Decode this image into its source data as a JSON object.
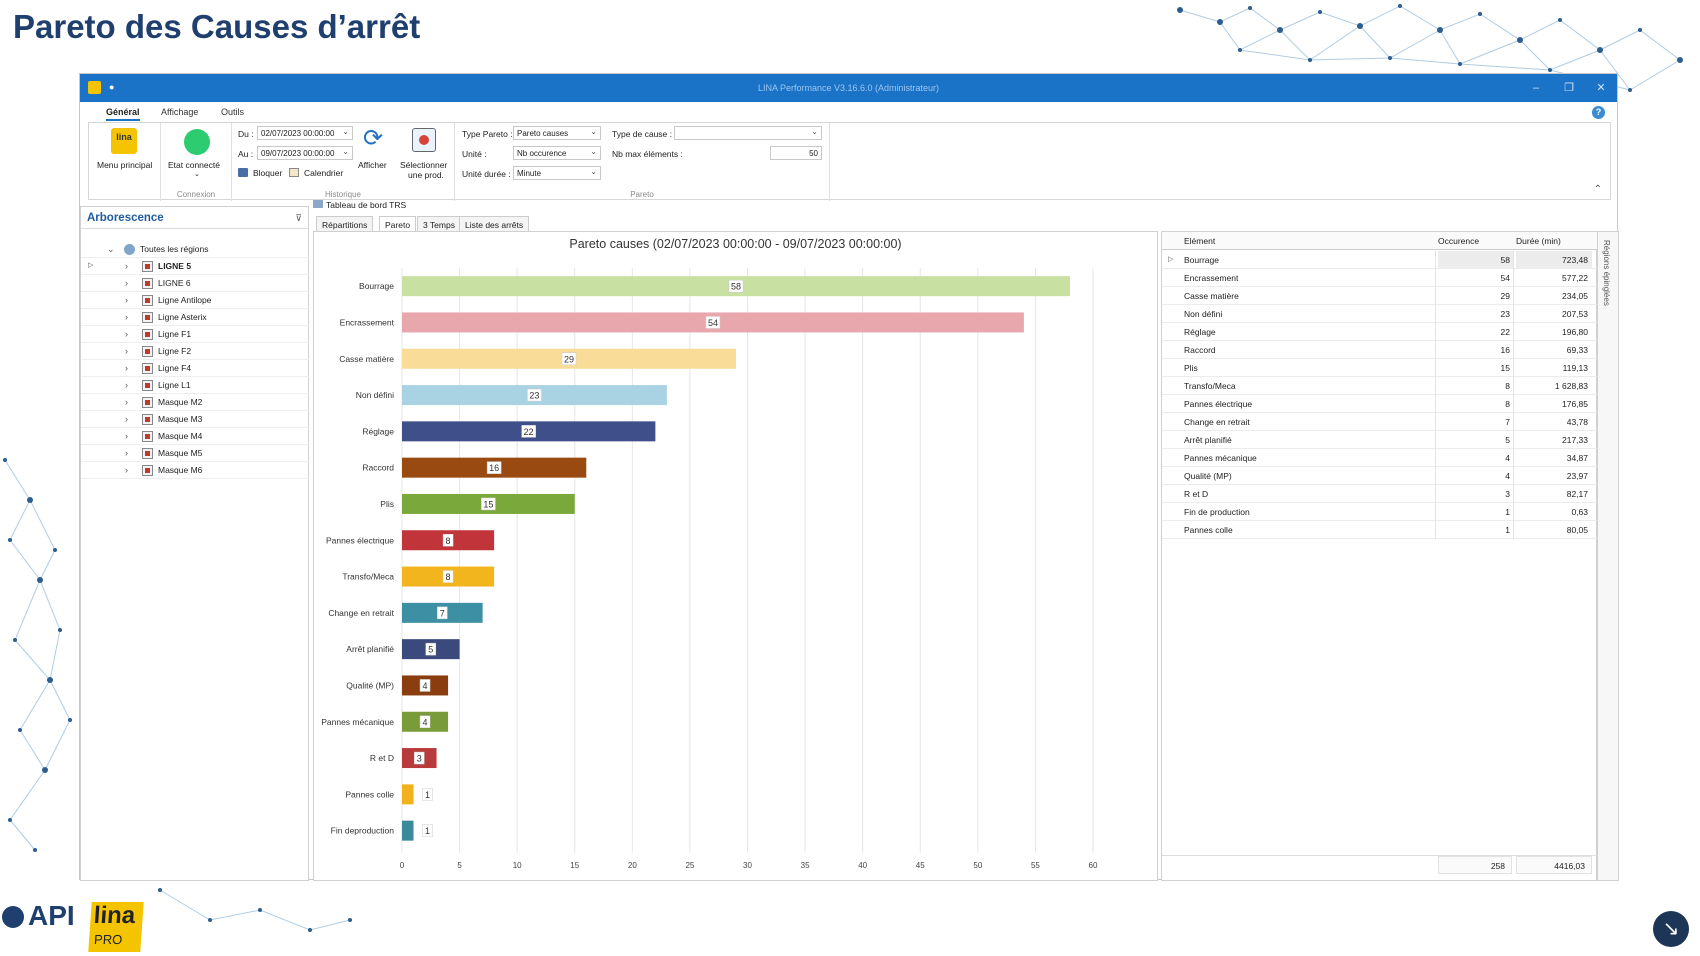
{
  "slide": {
    "title": "Pareto des Causes d’arrêt"
  },
  "window": {
    "title": "LINA Performance  V3.16.6.0  (Administrateur)"
  },
  "menu": {
    "tabs": [
      "Général",
      "Affichage",
      "Outils"
    ],
    "active": 0
  },
  "ribbon": {
    "menu_principal": "Menu principal",
    "lina_logo": "lina",
    "etat_connecte": "Etat connecté",
    "connexion_group": "Connexion",
    "du_label": "Du :",
    "du_value": "02/07/2023 00:00:00",
    "au_label": "Au :",
    "au_value": "09/07/2023 00:00:00",
    "bloquer": "Bloquer",
    "calendrier": "Calendrier",
    "afficher": "Afficher",
    "selectionner_l1": "Sélectionner",
    "selectionner_l2": "une prod.",
    "historique_group": "Historique",
    "type_pareto_label": "Type Pareto :",
    "type_pareto_value": "Pareto causes",
    "unite_label": "Unité :",
    "unite_value": "Nb occurence",
    "unite_duree_label": "Unité durée :",
    "unite_duree_value": "Minute",
    "type_cause_label": "Type de cause :",
    "type_cause_value": "",
    "nb_max_label": "Nb max éléments :",
    "nb_max_value": "50",
    "pareto_group": "Pareto"
  },
  "tree": {
    "title": "Arborescence",
    "root": "Toutes les régions",
    "items": [
      "LIGNE 5",
      "LIGNE 6",
      "Ligne Antilope",
      "Ligne Asterix",
      "Ligne F1",
      "Ligne F2",
      "Ligne F4",
      "Ligne L1",
      "Masque M2",
      "Masque M3",
      "Masque M4",
      "Masque M5",
      "Masque M6"
    ]
  },
  "doc_tab": "Tableau de bord TRS",
  "subtabs": [
    "Répartitions",
    "Pareto",
    "3 Temps",
    "Liste des arrêts"
  ],
  "chart_data": {
    "type": "bar",
    "orientation": "horizontal",
    "title": "Pareto causes (02/07/2023 00:00:00 - 09/07/2023 00:00:00)",
    "categories": [
      "Bourrage",
      "Encrassement",
      "Casse matière",
      "Non défini",
      "Réglage",
      "Raccord",
      "Plis",
      "Pannes électrique",
      "Transfo/Meca",
      "Change en retrait",
      "Arrêt planifié",
      "Qualité (MP)",
      "Pannes mécanique",
      "R et D",
      "Pannes colle",
      "Fin deproduction"
    ],
    "values": [
      58,
      54,
      29,
      23,
      22,
      16,
      15,
      8,
      8,
      7,
      5,
      4,
      4,
      3,
      1,
      1
    ],
    "colors": [
      "#c9e0a3",
      "#e8a7ad",
      "#f9dc98",
      "#a9d3e3",
      "#3f4f8a",
      "#984a10",
      "#7aa83a",
      "#c0343a",
      "#f2b51e",
      "#3d8fa3",
      "#3a4a7c",
      "#8a3e10",
      "#7a9b3a",
      "#b83a3a",
      "#f2b21e",
      "#3a8a9c"
    ],
    "xlim": [
      0,
      60
    ],
    "xticks": [
      0,
      5,
      10,
      15,
      20,
      25,
      30,
      35,
      40,
      45,
      50,
      55,
      60
    ],
    "grid": true
  },
  "table": {
    "headers": [
      "Elément",
      "Occurence",
      "Durée (min)"
    ],
    "rows": [
      [
        "Bourrage",
        "58",
        "723,48"
      ],
      [
        "Encrassement",
        "54",
        "577,22"
      ],
      [
        "Casse matière",
        "29",
        "234,05"
      ],
      [
        "Non défini",
        "23",
        "207,53"
      ],
      [
        "Réglage",
        "22",
        "196,80"
      ],
      [
        "Raccord",
        "16",
        "69,33"
      ],
      [
        "Plis",
        "15",
        "119,13"
      ],
      [
        "Transfo/Meca",
        "8",
        "1 628,83"
      ],
      [
        "Pannes électrique",
        "8",
        "176,85"
      ],
      [
        "Change en retrait",
        "7",
        "43,78"
      ],
      [
        "Arrêt planifié",
        "5",
        "217,33"
      ],
      [
        "Pannes mécanique",
        "4",
        "34,87"
      ],
      [
        "Qualité (MP)",
        "4",
        "23,97"
      ],
      [
        "R et D",
        "3",
        "82,17"
      ],
      [
        "Fin de production",
        "1",
        "0,63"
      ],
      [
        "Pannes colle",
        "1",
        "80,05"
      ]
    ],
    "total_occurence": "258",
    "total_duree": "4416,03"
  },
  "side_strip": "Régions épinglées",
  "footer_logos": {
    "api": "API",
    "lina": "lina",
    "pro": "PRO"
  }
}
